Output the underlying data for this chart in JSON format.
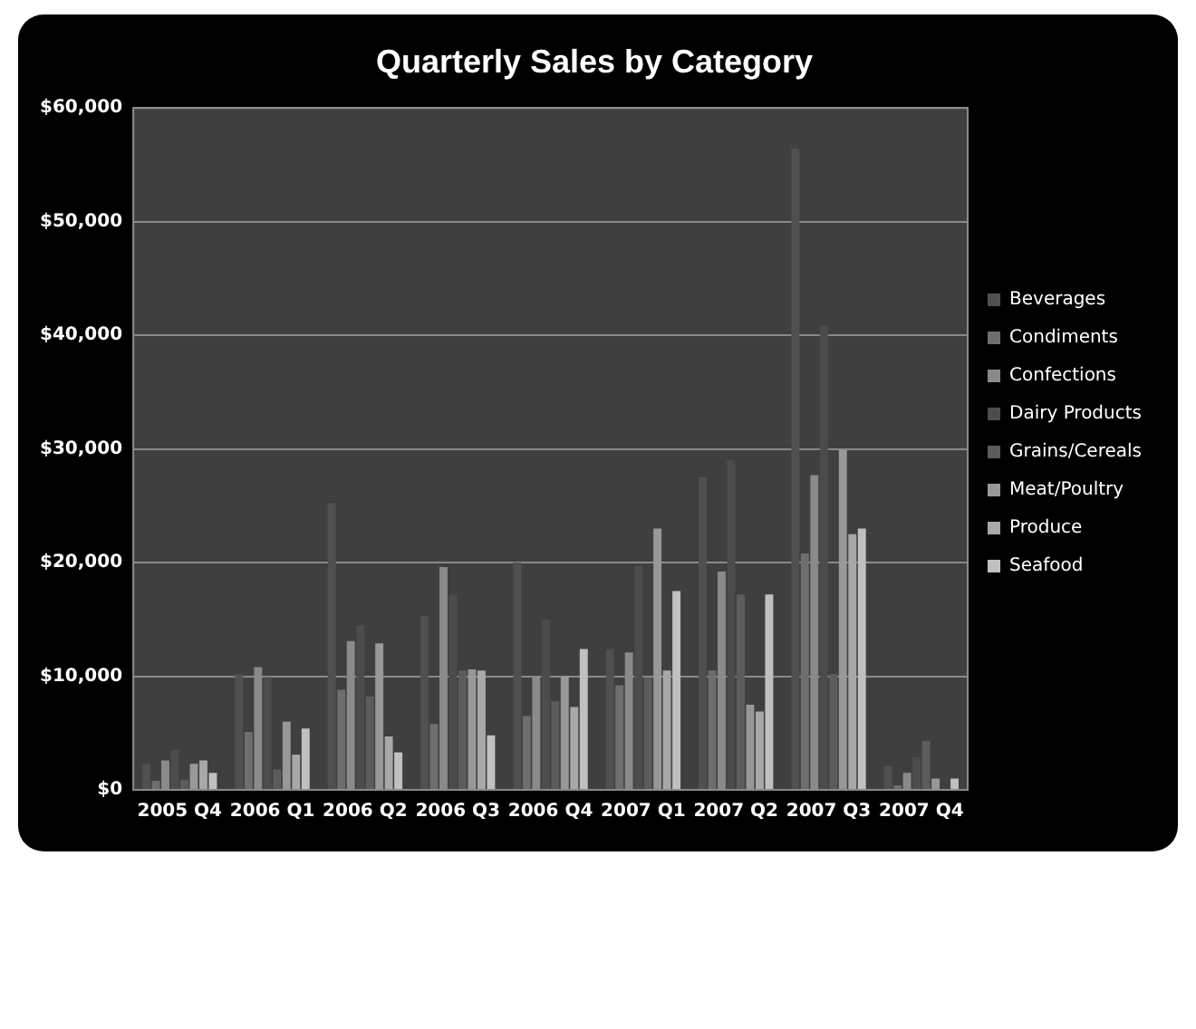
{
  "chart_data": {
    "type": "bar",
    "title": "Quarterly Sales by Category",
    "categories": [
      "2005 Q4",
      "2006 Q1",
      "2006 Q2",
      "2006 Q3",
      "2006 Q4",
      "2007 Q1",
      "2007 Q2",
      "2007 Q3",
      "2007 Q4"
    ],
    "series": [
      {
        "name": "Beverages",
        "color": "#505050",
        "values": [
          2300,
          10200,
          25200,
          15300,
          20000,
          12400,
          27500,
          56400,
          2100
        ]
      },
      {
        "name": "Condiments",
        "color": "#6e6e6e",
        "values": [
          800,
          5100,
          8800,
          5800,
          6500,
          9200,
          10500,
          20800,
          400
        ]
      },
      {
        "name": "Confections",
        "color": "#8a8a8a",
        "values": [
          2600,
          10800,
          13100,
          19600,
          9900,
          12100,
          19200,
          27700,
          1500
        ]
      },
      {
        "name": "Dairy Products",
        "color": "#4c4c4c",
        "values": [
          3500,
          9900,
          14500,
          17200,
          15000,
          19700,
          29000,
          40800,
          2900
        ]
      },
      {
        "name": "Grains/Cereals",
        "color": "#5c5c5c",
        "values": [
          900,
          1800,
          8200,
          10500,
          7800,
          9900,
          17200,
          10200,
          4300
        ]
      },
      {
        "name": "Meat/Poultry",
        "color": "#989898",
        "values": [
          2300,
          6000,
          12900,
          10600,
          10000,
          23000,
          7500,
          29900,
          1000
        ]
      },
      {
        "name": "Produce",
        "color": "#a8a8a8",
        "values": [
          2600,
          3100,
          4700,
          10500,
          7300,
          10500,
          6900,
          22500,
          null
        ]
      },
      {
        "name": "Seafood",
        "color": "#c0c0c0",
        "values": [
          1500,
          5400,
          3300,
          4800,
          12400,
          17500,
          17200,
          23000,
          1000
        ]
      }
    ],
    "ylim": [
      0,
      60000
    ],
    "yticks": [
      {
        "value": 0,
        "label": "$0"
      },
      {
        "value": 10000,
        "label": "$10,000"
      },
      {
        "value": 20000,
        "label": "$20,000"
      },
      {
        "value": 30000,
        "label": "$30,000"
      },
      {
        "value": 40000,
        "label": "$40,000"
      },
      {
        "value": 50000,
        "label": "$50,000"
      },
      {
        "value": 60000,
        "label": "$60,000"
      }
    ],
    "grid": "y",
    "legend": "right"
  }
}
